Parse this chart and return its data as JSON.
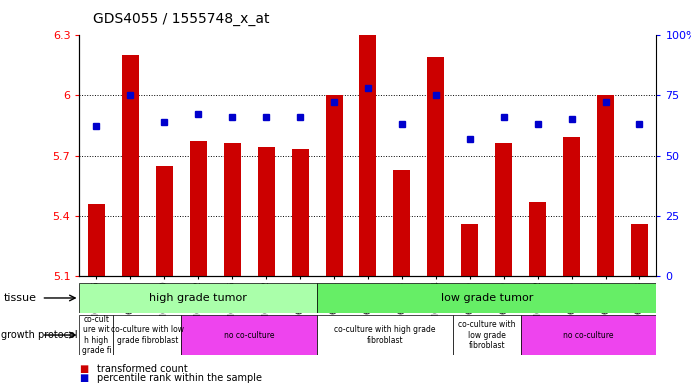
{
  "title": "GDS4055 / 1555748_x_at",
  "samples": [
    "GSM665455",
    "GSM665447",
    "GSM665450",
    "GSM665452",
    "GSM665095",
    "GSM665102",
    "GSM665103",
    "GSM665071",
    "GSM665072",
    "GSM665073",
    "GSM665094",
    "GSM665069",
    "GSM665070",
    "GSM665042",
    "GSM665066",
    "GSM665067",
    "GSM665068"
  ],
  "bar_values": [
    5.46,
    6.2,
    5.65,
    5.77,
    5.76,
    5.74,
    5.73,
    6.0,
    6.3,
    5.63,
    6.19,
    5.36,
    5.76,
    5.47,
    5.79,
    6.0,
    5.36
  ],
  "percentile_values": [
    62,
    75,
    64,
    67,
    66,
    66,
    66,
    72,
    78,
    63,
    75,
    57,
    66,
    63,
    65,
    72,
    63
  ],
  "ylim_left": [
    5.1,
    6.3
  ],
  "ylim_right": [
    0,
    100
  ],
  "yticks_left": [
    5.1,
    5.4,
    5.7,
    6.0,
    6.3
  ],
  "yticks_right": [
    0,
    25,
    50,
    75,
    100
  ],
  "ytick_labels_left": [
    "5.1",
    "5.4",
    "5.7",
    "6",
    "6.3"
  ],
  "ytick_labels_right": [
    "0",
    "25",
    "50",
    "75",
    "100%"
  ],
  "bar_color": "#cc0000",
  "dot_color": "#0000cc",
  "tissue_high_color": "#aaffaa",
  "tissue_low_color": "#66ee66",
  "growth_white_color": "#ffffff",
  "growth_purple_color": "#ee44ee",
  "tissue_groups": [
    {
      "label": "high grade tumor",
      "start": 0,
      "end": 7
    },
    {
      "label": "low grade tumor",
      "start": 7,
      "end": 17
    }
  ],
  "growth_groups": [
    {
      "label": "co-cult\nure wit\nh high\ngrade fi",
      "start": 0,
      "end": 1,
      "purple": false
    },
    {
      "label": "co-culture with low\ngrade fibroblast",
      "start": 1,
      "end": 3,
      "purple": false
    },
    {
      "label": "no co-culture",
      "start": 3,
      "end": 7,
      "purple": true
    },
    {
      "label": "co-culture with high grade\nfibroblast",
      "start": 7,
      "end": 11,
      "purple": false
    },
    {
      "label": "co-culture with\nlow grade\nfibroblast",
      "start": 11,
      "end": 13,
      "purple": false
    },
    {
      "label": "no co-culture",
      "start": 13,
      "end": 17,
      "purple": true
    }
  ],
  "legend_items": [
    {
      "label": "transformed count",
      "color": "#cc0000"
    },
    {
      "label": "percentile rank within the sample",
      "color": "#0000cc"
    }
  ]
}
